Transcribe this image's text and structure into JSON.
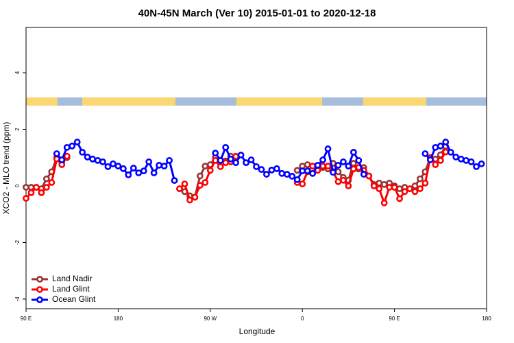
{
  "chart_data": {
    "type": "line",
    "title": "40N-45N March (Ver 10)   2015-01-01 to 2020-12-18",
    "x_label": "Longitude",
    "y_label": "XCO2 - MLO trend (ppm)",
    "x": [
      90,
      95,
      100,
      105,
      110,
      115,
      120,
      125,
      130,
      135,
      140,
      145,
      150,
      155,
      160,
      165,
      170,
      175,
      180,
      185,
      190,
      195,
      200,
      205,
      210,
      215,
      220,
      225,
      230,
      235,
      240,
      245,
      250,
      255,
      260,
      265,
      270,
      275,
      280,
      285,
      290,
      295,
      300,
      305,
      310,
      315,
      320,
      325,
      330,
      335,
      340,
      345,
      350,
      355,
      360,
      365,
      370,
      375,
      380,
      385,
      390,
      395,
      400,
      405,
      410,
      415,
      420,
      425,
      430,
      435,
      440,
      445,
      450,
      455,
      460,
      465,
      470,
      475,
      480,
      485,
      490,
      495,
      500,
      505,
      510,
      515,
      520,
      525,
      530,
      535,
      540
    ],
    "xlim": [
      90,
      540
    ],
    "xticks": [
      {
        "value": 90,
        "label": "90 E"
      },
      {
        "value": 180,
        "label": "180"
      },
      {
        "value": 270,
        "label": "90 W"
      },
      {
        "value": 360,
        "label": "0"
      },
      {
        "value": 450,
        "label": "90 E"
      },
      {
        "value": 540,
        "label": "180"
      }
    ],
    "ylim": [
      -4.34,
      5.6
    ],
    "yticks": [
      -4,
      -2,
      0,
      2,
      4
    ],
    "legend": "bottom-left",
    "series": [
      {
        "name": "Land Nadir",
        "color": "#993333",
        "values": [
          -0.05,
          -0.05,
          -0.05,
          -0.1,
          0.25,
          0.5,
          1.0,
          0.85,
          1.0,
          null,
          null,
          null,
          null,
          null,
          null,
          null,
          null,
          null,
          null,
          null,
          null,
          null,
          null,
          null,
          null,
          null,
          null,
          null,
          null,
          null,
          -0.1,
          -0.2,
          -0.35,
          -0.4,
          0.35,
          0.7,
          0.75,
          1.0,
          0.9,
          0.88,
          1.05,
          1.05,
          null,
          null,
          null,
          null,
          null,
          null,
          null,
          null,
          null,
          null,
          null,
          0.55,
          0.7,
          0.75,
          0.7,
          0.7,
          0.65,
          0.6,
          0.8,
          0.5,
          0.3,
          0.2,
          0.8,
          0.6,
          0.65,
          0.35,
          0.05,
          0.1,
          0.05,
          0.1,
          0.0,
          -0.1,
          -0.05,
          -0.1,
          0.0,
          0.25,
          0.5,
          1.0,
          0.95,
          1.1,
          1.4,
          null,
          null,
          null,
          null,
          null,
          null,
          null,
          null
        ]
      },
      {
        "name": "Land Glint",
        "color": "#ff0000",
        "values": [
          -0.44,
          -0.24,
          -0.05,
          -0.24,
          -0.05,
          0.12,
          0.95,
          0.75,
          1.05,
          null,
          null,
          null,
          null,
          null,
          null,
          null,
          null,
          null,
          null,
          null,
          null,
          null,
          null,
          null,
          null,
          null,
          null,
          null,
          null,
          null,
          -0.1,
          0.07,
          -0.5,
          -0.4,
          0.02,
          0.12,
          0.55,
          0.9,
          0.68,
          0.82,
          0.85,
          1.04,
          null,
          null,
          null,
          null,
          null,
          null,
          null,
          null,
          null,
          null,
          null,
          0.12,
          0.07,
          0.5,
          0.7,
          0.55,
          0.7,
          0.7,
          0.5,
          0.15,
          0.2,
          0.0,
          0.6,
          0.65,
          0.55,
          0.35,
          0.0,
          -0.1,
          -0.6,
          -0.05,
          -0.05,
          -0.45,
          -0.2,
          -0.1,
          -0.2,
          -0.1,
          0.1,
          1.0,
          0.75,
          0.9,
          1.2,
          null,
          null,
          null,
          null,
          null,
          null,
          null,
          null
        ]
      },
      {
        "name": "Ocean Glint",
        "color": "#0000ff",
        "values": [
          null,
          null,
          null,
          null,
          null,
          null,
          1.14,
          0.92,
          1.36,
          1.41,
          1.55,
          1.19,
          1.02,
          0.95,
          0.9,
          0.85,
          0.68,
          0.78,
          0.7,
          0.61,
          0.39,
          0.63,
          0.46,
          0.53,
          0.85,
          0.46,
          0.73,
          0.7,
          0.9,
          0.19,
          null,
          null,
          null,
          null,
          null,
          null,
          null,
          1.16,
          0.9,
          1.36,
          0.95,
          0.82,
          1.09,
          0.82,
          0.92,
          0.68,
          0.58,
          0.41,
          0.56,
          0.61,
          0.44,
          0.41,
          0.34,
          0.22,
          0.53,
          0.53,
          0.44,
          0.73,
          0.92,
          1.31,
          0.48,
          0.73,
          0.85,
          0.7,
          1.19,
          0.9,
          0.41,
          null,
          null,
          null,
          null,
          null,
          null,
          null,
          null,
          null,
          null,
          null,
          1.14,
          0.92,
          1.36,
          1.41,
          1.55,
          1.19,
          1.02,
          0.95,
          0.9,
          0.85,
          0.68,
          0.78,
          null
        ]
      }
    ]
  }
}
